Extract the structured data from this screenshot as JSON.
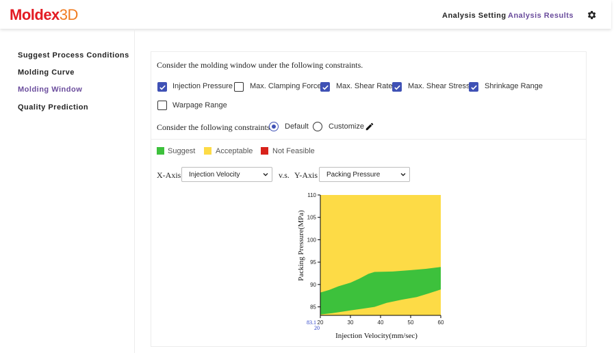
{
  "brand": {
    "part1": "Moldex",
    "part2": "3D"
  },
  "nav": {
    "analysis_setting": "Analysis Setting",
    "analysis_results": "Analysis Results",
    "settings_icon": "gear-icon"
  },
  "sidebar": {
    "items": [
      {
        "label": "Suggest Process Conditions",
        "active": false
      },
      {
        "label": "Molding Curve",
        "active": false
      },
      {
        "label": "Molding Window",
        "active": true
      },
      {
        "label": "Quality Prediction",
        "active": false
      }
    ]
  },
  "constraints": {
    "heading": "Consider the molding window under the following constraints.",
    "items": [
      {
        "label": "Injection Pressure",
        "checked": true
      },
      {
        "label": "Max. Clamping Force",
        "checked": false
      },
      {
        "label": "Max. Shear Rate",
        "checked": true
      },
      {
        "label": "Max. Shear Stress",
        "checked": true
      },
      {
        "label": "Shrinkage Range",
        "checked": true
      },
      {
        "label": "Warpage Range",
        "checked": false
      }
    ],
    "mode_heading": "Consider the following constraints.",
    "mode_default": "Default",
    "mode_customize": "Customize",
    "mode_selected": "Default"
  },
  "legend": [
    {
      "label": "Suggest",
      "color": "#3dc13c"
    },
    {
      "label": "Acceptable",
      "color": "#fddb46"
    },
    {
      "label": "Not Feasible",
      "color": "#d8221b"
    }
  ],
  "axes_select": {
    "x_label": "X-Axis",
    "x_value": "Injection Velocity",
    "vs": "v.s.",
    "y_label": "Y-Axis",
    "y_value": "Packing Pressure"
  },
  "chart_data": {
    "type": "heatmap",
    "xlabel": "Injection Velocity(mm/sec)",
    "ylabel": "Packing Pressure(MPa)",
    "xlim": [
      20,
      60
    ],
    "ylim": [
      83.1,
      110
    ],
    "x_ticks": [
      20,
      30,
      40,
      50,
      60
    ],
    "y_ticks": [
      85,
      90,
      95,
      100,
      105,
      110
    ],
    "corner_labels": {
      "y_min": "83.1",
      "x_min": "20"
    },
    "background_color": "#fddb46",
    "suggest_color": "#3dc13c",
    "suggest_region": {
      "upper": [
        [
          20,
          88.2
        ],
        [
          23,
          88.8
        ],
        [
          26,
          89.6
        ],
        [
          30,
          90.4
        ],
        [
          33,
          91.3
        ],
        [
          36,
          92.4
        ],
        [
          38,
          92.8
        ],
        [
          44,
          92.9
        ],
        [
          50,
          93.2
        ],
        [
          55,
          93.5
        ],
        [
          60,
          93.9
        ]
      ],
      "lower": [
        [
          60,
          88.9
        ],
        [
          56,
          88.0
        ],
        [
          52,
          87.2
        ],
        [
          47,
          86.6
        ],
        [
          42,
          85.9
        ],
        [
          38,
          85.0
        ],
        [
          34,
          84.6
        ],
        [
          30,
          84.2
        ],
        [
          24,
          83.6
        ],
        [
          20,
          83.3
        ]
      ]
    }
  }
}
